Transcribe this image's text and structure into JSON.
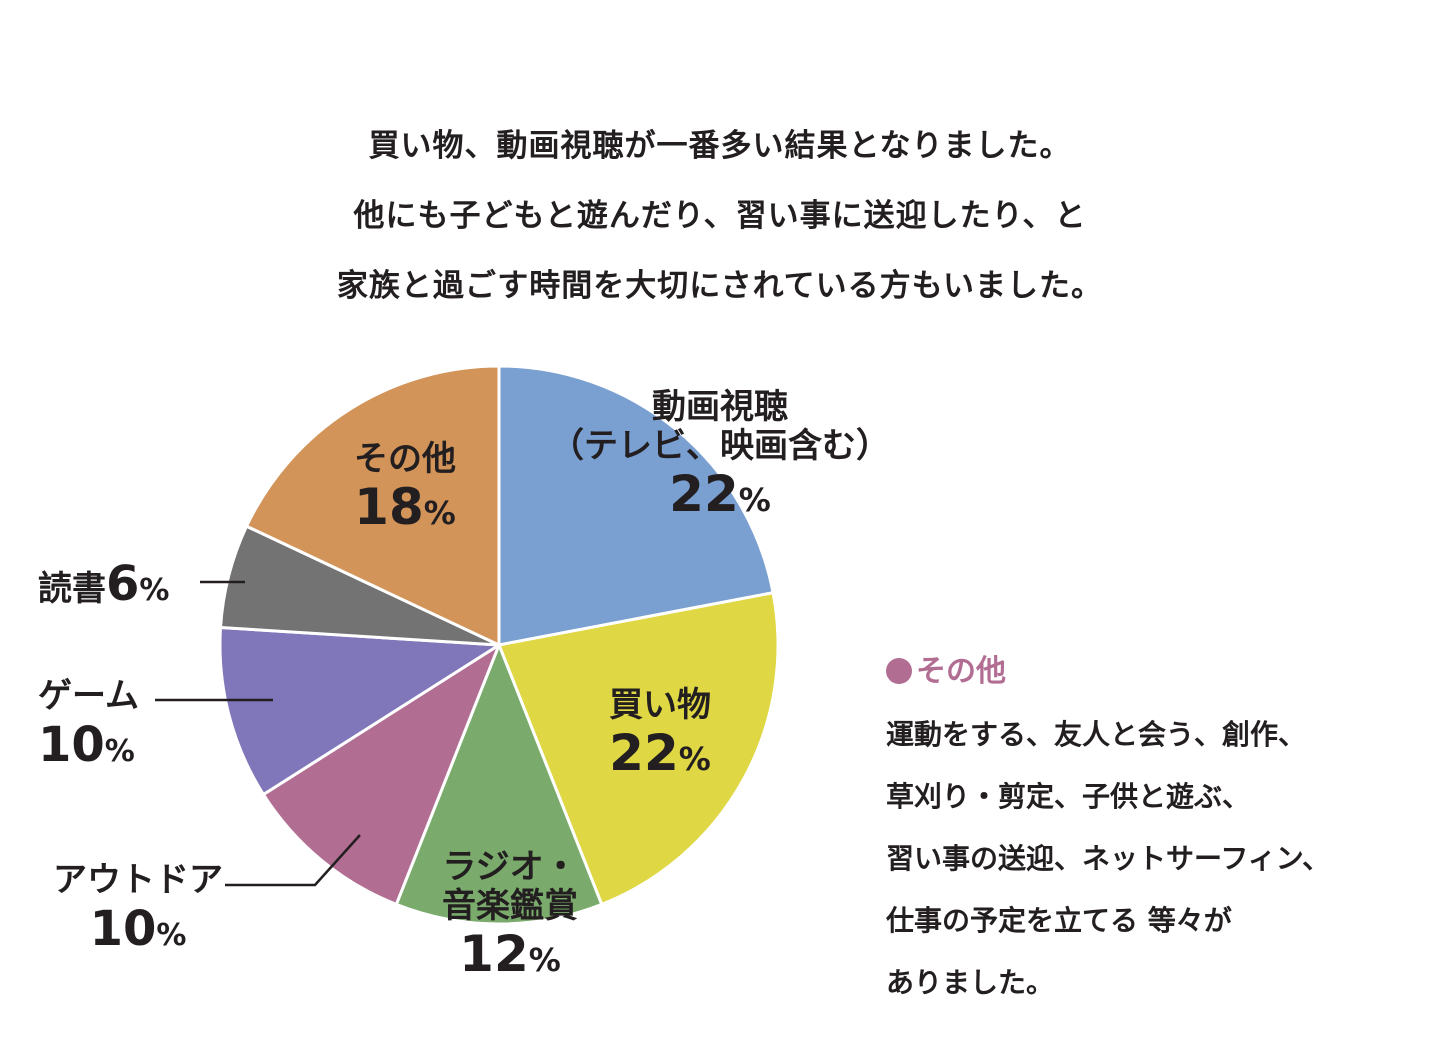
{
  "intro": {
    "lines": [
      "買い物、動画視聴が一番多い結果となりました。",
      "他にも子どもと遊んだり、習い事に送迎したり、と",
      "家族と過ごす時間を大切にされている方もいました。"
    ]
  },
  "chart_data": {
    "type": "pie",
    "title": "",
    "unit": "%",
    "slices": [
      {
        "name": "動画視聴（テレビ、映画含む）",
        "label_lines": [
          "動画視聴",
          "（テレビ、映画含む）"
        ],
        "value": 22,
        "color": "#7aa0d2"
      },
      {
        "name": "買い物",
        "label_lines": [
          "買い物"
        ],
        "value": 22,
        "color": "#dfd744"
      },
      {
        "name": "ラジオ・音楽鑑賞",
        "label_lines": [
          "ラジオ・",
          "音楽鑑賞"
        ],
        "value": 12,
        "color": "#7aab6c"
      },
      {
        "name": "アウトドア",
        "label_lines": [
          "アウトドア"
        ],
        "value": 10,
        "color": "#b26d93"
      },
      {
        "name": "ゲーム",
        "label_lines": [
          "ゲーム"
        ],
        "value": 10,
        "color": "#8077ba"
      },
      {
        "name": "読書",
        "label_lines": [
          "読書"
        ],
        "value": 6,
        "color": "#737373"
      },
      {
        "name": "その他",
        "label_lines": [
          "その他"
        ],
        "value": 18,
        "color": "#d39459"
      }
    ],
    "start": "12 o'clock",
    "direction": "clockwise"
  },
  "other_note": {
    "bullet_color": "#b26d93",
    "heading": "その他",
    "lines": [
      "運動をする、友人と会う、創作、",
      "草刈り・剪定、子供と遊ぶ、",
      "習い事の送迎、ネットサーフィン、",
      "仕事の予定を立てる 等々が",
      "ありました。"
    ]
  }
}
